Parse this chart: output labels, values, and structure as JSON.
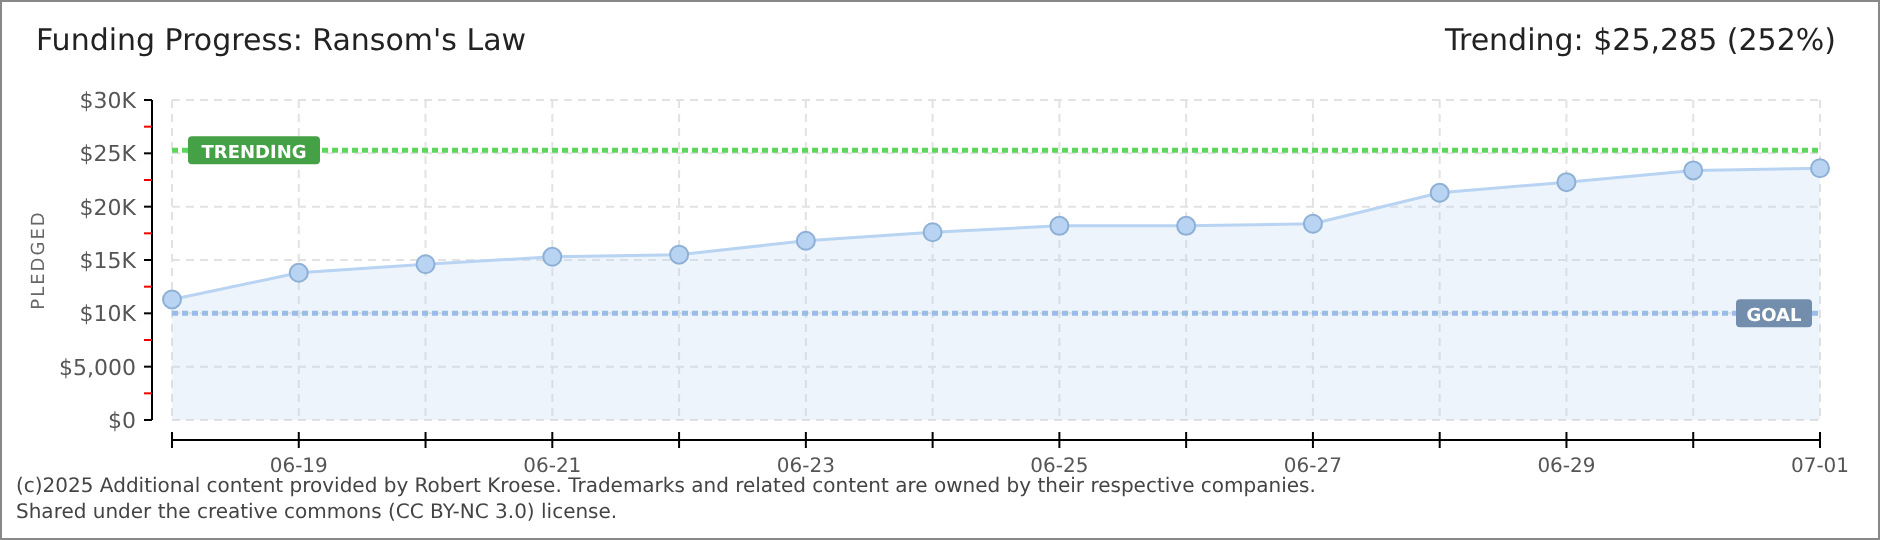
{
  "chart_data": {
    "type": "area",
    "title": "Funding Progress: Ransom's Law",
    "subtitle": "Trending: $25,285 (252%)",
    "ylabel": "PLEDGED",
    "x": [
      "2025-06-18",
      "2025-06-19",
      "2025-06-20",
      "2025-06-21",
      "2025-06-22",
      "2025-06-23",
      "2025-06-24",
      "2025-06-25",
      "2025-06-26",
      "2025-06-27",
      "2025-06-28",
      "2025-06-29",
      "2025-06-30",
      "2025-07-01"
    ],
    "series": [
      {
        "color": "#b8d4f2",
        "values": [
          11300,
          13800,
          14600,
          15300,
          15500,
          16800,
          17600,
          18200,
          18200,
          18400,
          21300,
          22300,
          23400,
          23600
        ]
      }
    ],
    "xlim": [
      "2025-06-18",
      "2025-07-01"
    ],
    "xticks": [
      {
        "value": "2025-06-18",
        "label": null
      },
      {
        "value": "2025-06-19",
        "label": "06-19"
      },
      {
        "value": "2025-06-20",
        "label": null
      },
      {
        "value": "2025-06-21",
        "label": "06-21"
      },
      {
        "value": "2025-06-22",
        "label": null
      },
      {
        "value": "2025-06-23",
        "label": "06-23"
      },
      {
        "value": "2025-06-24",
        "label": null
      },
      {
        "value": "2025-06-25",
        "label": "06-25"
      },
      {
        "value": "2025-06-26",
        "label": null
      },
      {
        "value": "2025-06-27",
        "label": "06-27"
      },
      {
        "value": "2025-06-28",
        "label": null
      },
      {
        "value": "2025-06-29",
        "label": "06-29"
      },
      {
        "value": "2025-06-30",
        "label": null
      },
      {
        "value": "2025-07-01",
        "label": "07-01"
      }
    ],
    "ylim": [
      0,
      30000
    ],
    "yticks": [
      {
        "value": 0,
        "label": "$0"
      },
      {
        "value": 2500,
        "label": null
      },
      {
        "value": 5000,
        "label": "$5,000"
      },
      {
        "value": 7500,
        "label": null
      },
      {
        "value": 10000,
        "label": "$10K"
      },
      {
        "value": 12500,
        "label": null
      },
      {
        "value": 15000,
        "label": "$15K"
      },
      {
        "value": 17500,
        "label": null
      },
      {
        "value": 20000,
        "label": "$20K"
      },
      {
        "value": 22500,
        "label": null
      },
      {
        "value": 25000,
        "label": "$25K"
      },
      {
        "value": 27500,
        "label": null
      },
      {
        "value": 30000,
        "label": "$30K"
      }
    ],
    "grid": true,
    "marker": "circle",
    "ref_lines": [
      {
        "axis": "y",
        "value": 25285,
        "label": "TRENDING",
        "color": "#5cd65c",
        "line_style": "dotted"
      },
      {
        "axis": "y",
        "value": 10000,
        "label": "GOAL",
        "color": "#99bde6",
        "line_style": "dotted"
      }
    ],
    "annotations": [
      "(c)2025 Additional content provided by Robert Kroese. Trademarks and related content are owned by their respective companies.",
      "Shared under the creative commons (CC BY-NC 3.0) license."
    ]
  }
}
